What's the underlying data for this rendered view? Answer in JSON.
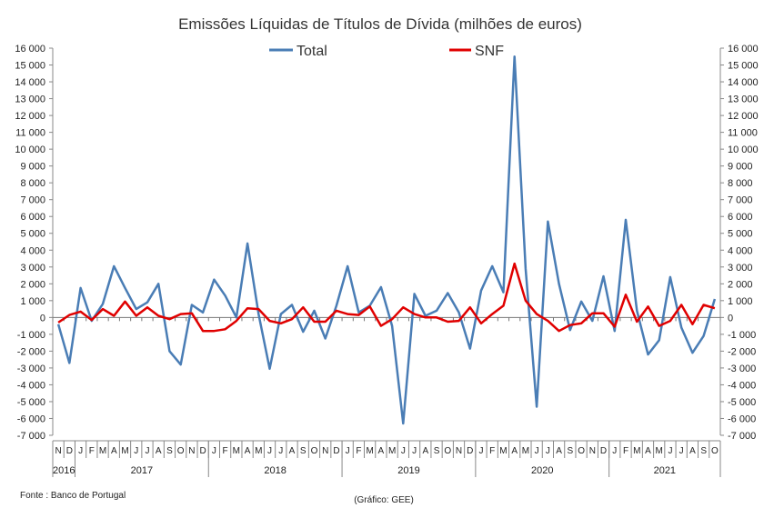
{
  "chart_data": {
    "type": "line",
    "title": "Emissões Líquidas de Títulos de Dívida (milhões de euros)",
    "source_note": "Fonte : Banco de Portugal",
    "credit_note": "(Gráfico: GEE)",
    "ylim": [
      -7000,
      16000
    ],
    "y_ticks": [
      "16 000",
      "15 000",
      "14 000",
      "13 000",
      "12 000",
      "11 000",
      "10 000",
      "9 000",
      "8 000",
      "7 000",
      "6 000",
      "5 000",
      "4 000",
      "3 000",
      "2 000",
      "1 000",
      "0",
      "-1 000",
      "-2 000",
      "-3 000",
      "-4 000",
      "-5 000",
      "-6 000",
      "-7 000"
    ],
    "month_labels": [
      "N",
      "D",
      "J",
      "F",
      "M",
      "A",
      "M",
      "J",
      "J",
      "A",
      "S",
      "O",
      "N",
      "D",
      "J",
      "F",
      "M",
      "A",
      "M",
      "J",
      "J",
      "A",
      "S",
      "O",
      "N",
      "D",
      "J",
      "F",
      "M",
      "A",
      "M",
      "J",
      "J",
      "A",
      "S",
      "O",
      "N",
      "D",
      "J",
      "F",
      "M",
      "A",
      "M",
      "J",
      "J",
      "A",
      "S",
      "O",
      "N",
      "D",
      "J",
      "F",
      "M",
      "A",
      "M",
      "J",
      "J",
      "A",
      "S",
      "O"
    ],
    "year_labels": [
      {
        "label": "2016",
        "start": 0,
        "end": 1
      },
      {
        "label": "2017",
        "start": 2,
        "end": 13
      },
      {
        "label": "2018",
        "start": 14,
        "end": 25
      },
      {
        "label": "2019",
        "start": 26,
        "end": 37
      },
      {
        "label": "2020",
        "start": 38,
        "end": 49
      },
      {
        "label": "2021",
        "start": 50,
        "end": 59
      }
    ],
    "legend_position": "top-center",
    "series": [
      {
        "name": "Total",
        "color": "#4a7db5",
        "values": [
          -400,
          -2700,
          1750,
          -200,
          800,
          3050,
          1750,
          500,
          900,
          2000,
          -2000,
          -2800,
          750,
          300,
          2250,
          1300,
          0,
          4400,
          200,
          -3050,
          200,
          750,
          -850,
          400,
          -1250,
          700,
          3050,
          300,
          700,
          1800,
          -500,
          -6300,
          1400,
          100,
          400,
          1450,
          300,
          -1850,
          1600,
          3050,
          1500,
          15500,
          2900,
          -5300,
          5700,
          2000,
          -750,
          950,
          -200,
          2450,
          -800,
          5800,
          400,
          -2200,
          -1350,
          2400,
          -600,
          -2100,
          -1100,
          1100
        ]
      },
      {
        "name": "SNF",
        "color": "#e00000",
        "values": [
          -300,
          150,
          350,
          -150,
          500,
          100,
          950,
          100,
          600,
          100,
          -100,
          200,
          250,
          -800,
          -800,
          -700,
          -200,
          550,
          500,
          -200,
          -350,
          -100,
          600,
          -250,
          -250,
          400,
          200,
          150,
          650,
          -500,
          -100,
          600,
          200,
          0,
          0,
          -250,
          -200,
          600,
          -350,
          200,
          700,
          3200,
          1000,
          200,
          -200,
          -800,
          -450,
          -350,
          250,
          250,
          -550,
          1350,
          -250,
          650,
          -500,
          -200,
          750,
          -400,
          750,
          550
        ]
      }
    ]
  }
}
